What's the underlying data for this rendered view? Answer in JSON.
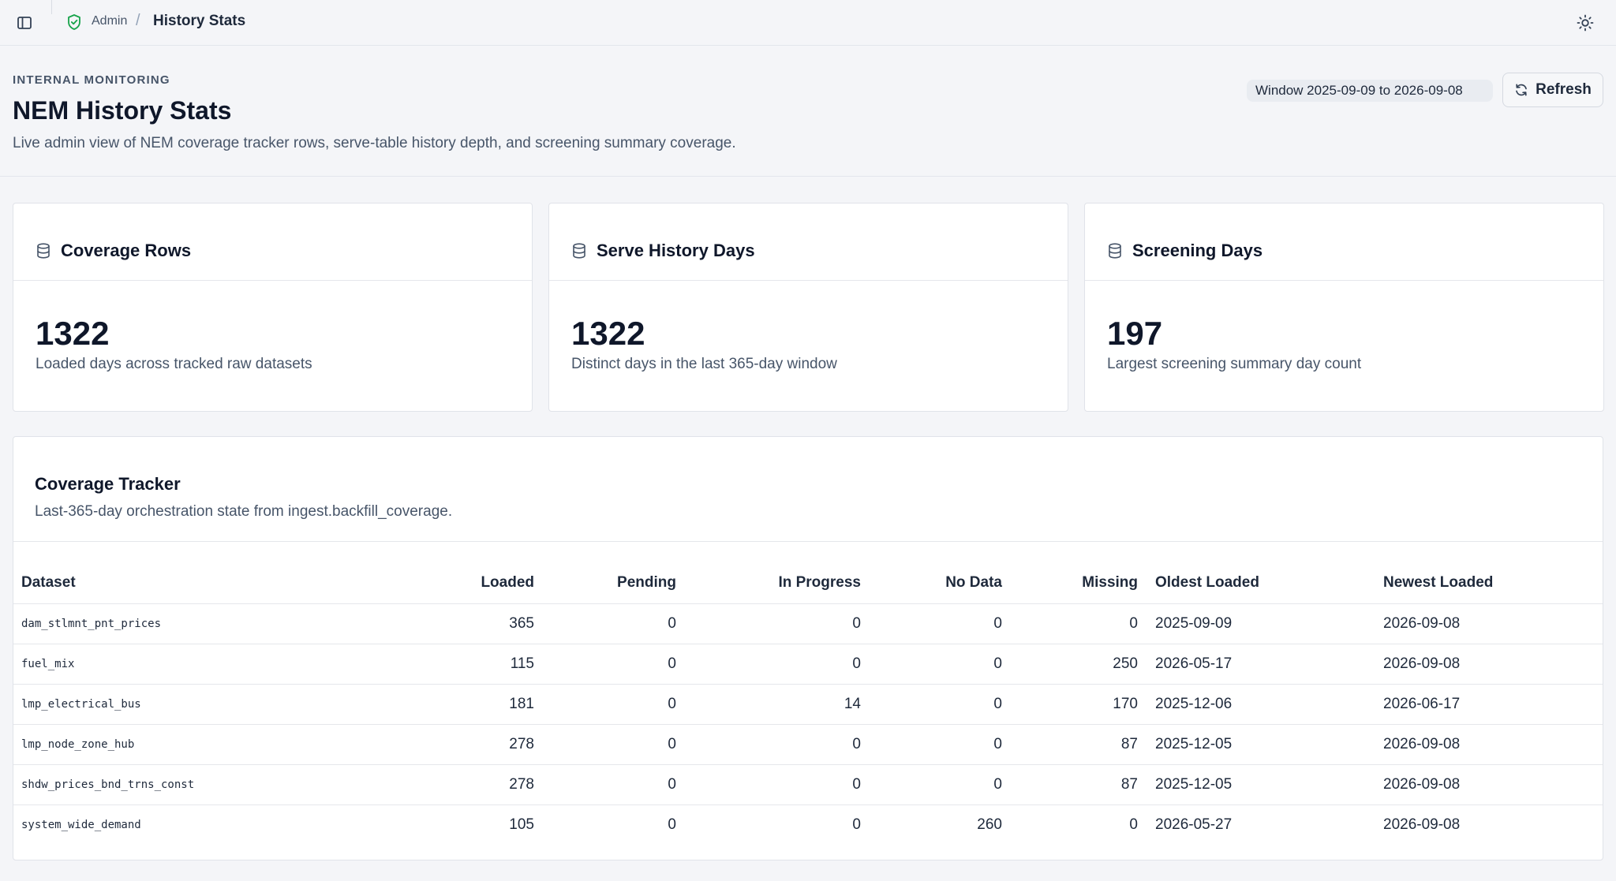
{
  "breadcrumb": {
    "root": "Admin",
    "separator": "/",
    "current": "History Stats"
  },
  "icons": {
    "sidebar_toggle": "sidebar-panel-icon",
    "breadcrumb_root": "shield-check-icon",
    "theme_toggle": "sun-icon",
    "refresh": "refresh-icon",
    "card": "database-icon"
  },
  "header": {
    "eyebrow": "INTERNAL MONITORING",
    "title": "NEM History Stats",
    "description": "Live admin view of NEM coverage tracker rows, serve-table history depth, and screening summary coverage.",
    "window_badge": "Window 2025-09-09 to 2026-09-08",
    "refresh_label": "Refresh"
  },
  "cards": [
    {
      "title": "Coverage Rows",
      "value": "1322",
      "caption": "Loaded days across tracked raw datasets"
    },
    {
      "title": "Serve History Days",
      "value": "1322",
      "caption": "Distinct days in the last 365-day window"
    },
    {
      "title": "Screening Days",
      "value": "197",
      "caption": "Largest screening summary day count"
    }
  ],
  "tracker": {
    "title": "Coverage Tracker",
    "description": "Last-365-day orchestration state from ingest.backfill_coverage.",
    "columns": [
      "Dataset",
      "Loaded",
      "Pending",
      "In Progress",
      "No Data",
      "Missing",
      "Oldest Loaded",
      "Newest Loaded"
    ],
    "rows": [
      [
        "dam_stlmnt_pnt_prices",
        "365",
        "0",
        "0",
        "0",
        "0",
        "2025-09-09",
        "2026-09-08"
      ],
      [
        "fuel_mix",
        "115",
        "0",
        "0",
        "0",
        "250",
        "2026-05-17",
        "2026-09-08"
      ],
      [
        "lmp_electrical_bus",
        "181",
        "0",
        "14",
        "0",
        "170",
        "2025-12-06",
        "2026-06-17"
      ],
      [
        "lmp_node_zone_hub",
        "278",
        "0",
        "0",
        "0",
        "87",
        "2025-12-05",
        "2026-09-08"
      ],
      [
        "shdw_prices_bnd_trns_const",
        "278",
        "0",
        "0",
        "0",
        "87",
        "2025-12-05",
        "2026-09-08"
      ],
      [
        "system_wide_demand",
        "105",
        "0",
        "0",
        "260",
        "0",
        "2026-05-27",
        "2026-09-08"
      ]
    ]
  },
  "colors": {
    "background": "#f4f5f8",
    "card": "#ffffff",
    "text_primary": "#0f172a",
    "text_secondary": "#475569",
    "border": "#e0e3e9",
    "shield_accent": "#16a34a"
  }
}
